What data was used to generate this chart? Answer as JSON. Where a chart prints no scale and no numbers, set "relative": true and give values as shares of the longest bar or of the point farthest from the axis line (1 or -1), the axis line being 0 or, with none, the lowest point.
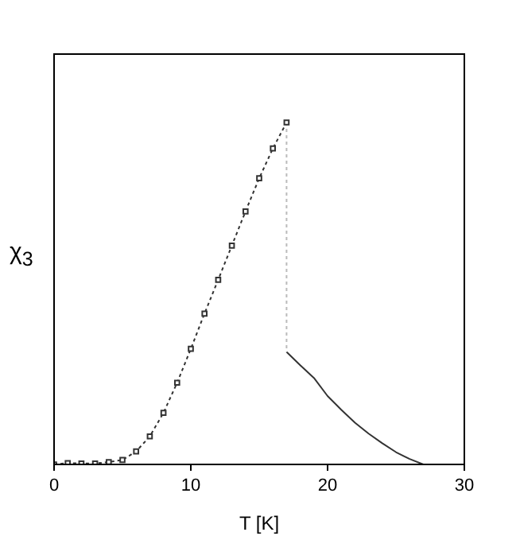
{
  "chart_data": {
    "type": "line",
    "xlabel": "T [K]",
    "ylabel": "χ$_{3}$",
    "relative": true,
    "xlim": [
      0,
      30
    ],
    "xticks": [
      0,
      10,
      20,
      30
    ],
    "grid": false,
    "legend": false,
    "series": [
      {
        "color": "#333333",
        "marker": "square",
        "line_style": "dotted",
        "x": [
          0,
          1,
          2,
          3,
          4,
          5,
          6,
          7,
          8,
          9,
          10,
          11,
          12,
          13,
          14,
          15,
          16,
          17
        ],
        "values": [
          0,
          0.004,
          0.003,
          0.003,
          0.007,
          0.013,
          0.038,
          0.082,
          0.151,
          0.239,
          0.338,
          0.441,
          0.54,
          0.64,
          0.74,
          0.837,
          0.924,
          1
        ]
      },
      {
        "color": "#bbbbbb",
        "marker": "none",
        "line_style": "dotted",
        "x": [
          17,
          17
        ],
        "values": [
          1,
          0.329
        ]
      },
      {
        "color": "#333333",
        "marker": "none",
        "line_style": "solid",
        "x": [
          17,
          18,
          19,
          20,
          21,
          22,
          23,
          24,
          25,
          26,
          27
        ],
        "values": [
          0.329,
          0.29,
          0.253,
          0.2,
          0.16,
          0.122,
          0.09,
          0.062,
          0.036,
          0.016,
          0
        ]
      }
    ]
  }
}
